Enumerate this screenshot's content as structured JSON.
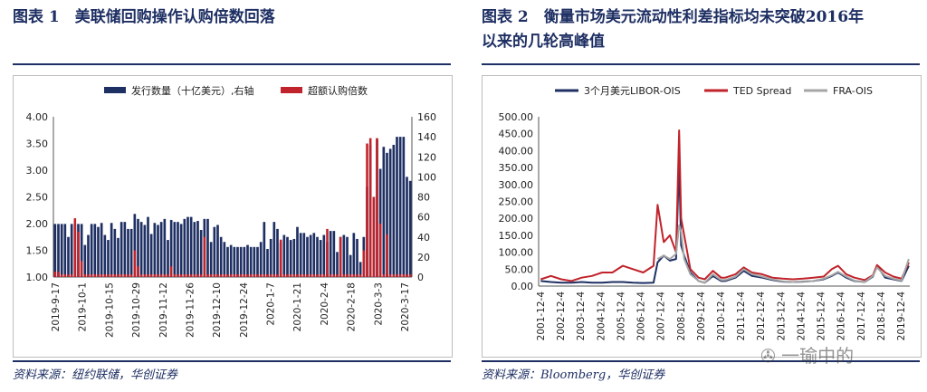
{
  "figures": [
    {
      "title": "图表 1　美联储回购操作认购倍数回落",
      "source": "资料来源：纽约联储，华创证券"
    },
    {
      "title_line1": "图表 2　衡量市场美元流动性利差指标均未突破2016年",
      "title_line2": "以来的几轮高峰值",
      "source": "资料来源：Bloomberg，华创证券"
    }
  ],
  "watermark_text": "一瑜中的",
  "chart_data": [
    {
      "type": "bar",
      "legend": [
        "发行数量（十亿美元）,右轴",
        "超额认购倍数"
      ],
      "legend_placement": "top",
      "colors": {
        "issuance": "#1e2f63",
        "oversub": "#c0232b"
      },
      "y_left": {
        "ylim": [
          1.0,
          4.0
        ],
        "ticks": [
          "1.00",
          "1.50",
          "2.00",
          "2.50",
          "3.00",
          "3.50",
          "4.00"
        ]
      },
      "y_right": {
        "ylim": [
          0,
          160
        ],
        "ticks": [
          "0",
          "20",
          "40",
          "60",
          "80",
          "100",
          "120",
          "140",
          "160"
        ]
      },
      "x_tick_labels": [
        "2019-9-17",
        "2019-10-1",
        "2019-10-15",
        "2019-10-29",
        "2019-11-12",
        "2019-11-26",
        "2019-12-10",
        "2019-12-24",
        "2020-1-7",
        "2020-1-21",
        "2020-2-4",
        "2020-2-18",
        "2020-3-3",
        "2020-3-17"
      ],
      "series": [
        {
          "name": "发行数量（十亿美元）,右轴",
          "axis": "right",
          "values": [
            53,
            53,
            53,
            53,
            40,
            53,
            53,
            53,
            53,
            32,
            42,
            53,
            53,
            50,
            54,
            42,
            37,
            54,
            48,
            39,
            55,
            55,
            48,
            48,
            63,
            58,
            55,
            52,
            60,
            43,
            54,
            52,
            55,
            58,
            37,
            57,
            55,
            55,
            53,
            58,
            60,
            60,
            55,
            56,
            47,
            58,
            58,
            35,
            50,
            52,
            40,
            35,
            30,
            32,
            30,
            30,
            30,
            30,
            32,
            30,
            30,
            30,
            35,
            55,
            28,
            38,
            55,
            48,
            34,
            42,
            40,
            37,
            38,
            50,
            44,
            44,
            40,
            42,
            44,
            40,
            37,
            42,
            35,
            46,
            46,
            25,
            40,
            42,
            40,
            22,
            44,
            38,
            15,
            40,
            90,
            132,
            80,
            138,
            108,
            130,
            124,
            128,
            132,
            140,
            140,
            140,
            100,
            96
          ]
        },
        {
          "name": "超额认购倍数",
          "axis": "left",
          "values": [
            1.1,
            1.1,
            1.05,
            1.05,
            1.05,
            1.05,
            2.1,
            1.85,
            1.3,
            1.05,
            1.05,
            1.05,
            1.05,
            1.05,
            1.05,
            1.05,
            1.05,
            1.05,
            1.05,
            1.05,
            1.05,
            1.05,
            1.05,
            1.05,
            1.5,
            1.2,
            1.05,
            1.05,
            1.05,
            1.05,
            1.05,
            1.05,
            1.05,
            1.05,
            1.05,
            1.2,
            1.05,
            1.05,
            1.05,
            1.05,
            1.05,
            1.05,
            1.05,
            1.05,
            1.05,
            1.75,
            1.05,
            1.05,
            1.05,
            1.05,
            1.05,
            1.05,
            1.05,
            1.05,
            1.05,
            1.05,
            1.05,
            1.05,
            1.05,
            1.05,
            1.05,
            1.05,
            1.05,
            1.05,
            1.05,
            1.05,
            1.05,
            1.05,
            1.7,
            1.05,
            1.05,
            1.05,
            1.05,
            1.05,
            1.05,
            1.05,
            1.05,
            1.05,
            1.05,
            1.05,
            1.05,
            1.05,
            1.9,
            1.05,
            1.05,
            1.05,
            1.75,
            1.05,
            1.05,
            1.05,
            1.05,
            1.05,
            1.05,
            1.5,
            3.5,
            3.6,
            2.5,
            3.6,
            2.0,
            1.05,
            1.8,
            1.05,
            1.05,
            1.05,
            1.05,
            1.05,
            1.05,
            1.05
          ]
        }
      ]
    },
    {
      "type": "line",
      "legend": [
        "3个月美元LIBOR-OIS",
        "TED Spread",
        "FRA-OIS"
      ],
      "legend_placement": "top",
      "ylim": [
        0,
        500
      ],
      "y_ticks": [
        "0.00",
        "50.00",
        "100.00",
        "150.00",
        "200.00",
        "250.00",
        "300.00",
        "350.00",
        "400.00",
        "450.00",
        "500.00"
      ],
      "x_tick_labels": [
        "2001-12-4",
        "2002-12-4",
        "2003-12-4",
        "2004-12-4",
        "2005-12-4",
        "2006-12-4",
        "2007-12-4",
        "2008-12-4",
        "2009-12-4",
        "2010-12-4",
        "2011-12-4",
        "2012-12-4",
        "2013-12-4",
        "2014-12-4",
        "2015-12-4",
        "2016-12-4",
        "2017-12-4",
        "2018-12-4",
        "2019-12-4"
      ],
      "x": [
        2002.0,
        2002.5,
        2003.0,
        2003.5,
        2004.0,
        2004.5,
        2005.0,
        2005.5,
        2006.0,
        2006.5,
        2007.0,
        2007.5,
        2007.7,
        2008.0,
        2008.3,
        2008.6,
        2008.75,
        2008.85,
        2009.0,
        2009.3,
        2009.7,
        2010.0,
        2010.4,
        2010.8,
        2011.0,
        2011.5,
        2011.9,
        2012.3,
        2012.8,
        2013.3,
        2013.8,
        2014.3,
        2014.8,
        2015.3,
        2015.8,
        2016.2,
        2016.5,
        2016.9,
        2017.3,
        2017.8,
        2018.2,
        2018.4,
        2018.8,
        2019.2,
        2019.6,
        2019.95
      ],
      "series": [
        {
          "name": "3个月美元LIBOR-OIS",
          "color": "#1e2f63",
          "values": [
            15,
            12,
            10,
            10,
            12,
            10,
            10,
            12,
            12,
            10,
            9,
            10,
            70,
            90,
            75,
            80,
            365,
            120,
            90,
            40,
            15,
            10,
            30,
            15,
            15,
            25,
            45,
            30,
            25,
            18,
            13,
            12,
            13,
            15,
            20,
            30,
            40,
            25,
            15,
            12,
            28,
            60,
            25,
            20,
            15,
            60
          ]
        },
        {
          "name": "TED Spread",
          "color": "#c0232b",
          "values": [
            20,
            30,
            20,
            15,
            25,
            30,
            40,
            40,
            60,
            50,
            40,
            60,
            240,
            130,
            150,
            100,
            460,
            200,
            150,
            50,
            25,
            20,
            45,
            25,
            25,
            35,
            55,
            40,
            35,
            25,
            22,
            20,
            22,
            25,
            28,
            50,
            60,
            35,
            25,
            18,
            32,
            62,
            40,
            28,
            22,
            70
          ]
        },
        {
          "name": "FRA-OIS",
          "color": "#a6a6a6",
          "values": [
            null,
            null,
            null,
            null,
            null,
            null,
            null,
            null,
            null,
            null,
            null,
            null,
            80,
            90,
            80,
            95,
            180,
            160,
            80,
            35,
            15,
            10,
            35,
            18,
            18,
            28,
            50,
            35,
            28,
            20,
            14,
            12,
            14,
            15,
            22,
            32,
            42,
            28,
            16,
            12,
            30,
            55,
            30,
            22,
            16,
            80
          ]
        }
      ]
    }
  ]
}
